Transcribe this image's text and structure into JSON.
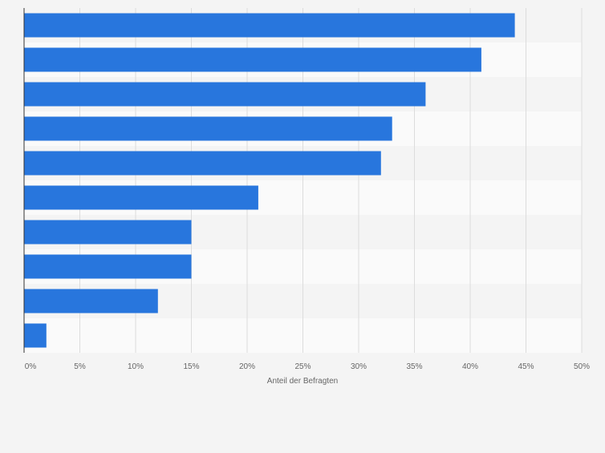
{
  "chart_data": {
    "type": "bar",
    "orientation": "horizontal",
    "title": "",
    "xlabel": "Anteil der Befragten",
    "ylabel": "",
    "categories": [
      "",
      "",
      "",
      "",
      "",
      "",
      "",
      "",
      "",
      ""
    ],
    "values": [
      44,
      41,
      36,
      33,
      32,
      21,
      15,
      15,
      12,
      2
    ],
    "value_unit": "%",
    "xlim": [
      0,
      50
    ],
    "xticks": [
      0,
      5,
      10,
      15,
      20,
      25,
      30,
      35,
      40,
      45,
      50
    ],
    "xtick_labels": [
      "0%",
      "5%",
      "10%",
      "15%",
      "20%",
      "25%",
      "30%",
      "35%",
      "40%",
      "45%",
      "50%"
    ],
    "grid": "vertical",
    "legend": "none",
    "colors": {
      "bar": "#2876dd",
      "background": "#f4f4f4",
      "row_band_light": "#fafafa",
      "row_band_dark": "#f4f4f4",
      "grid": "#dcdcdc",
      "axis": "#333333",
      "tick_text": "#666666"
    }
  }
}
